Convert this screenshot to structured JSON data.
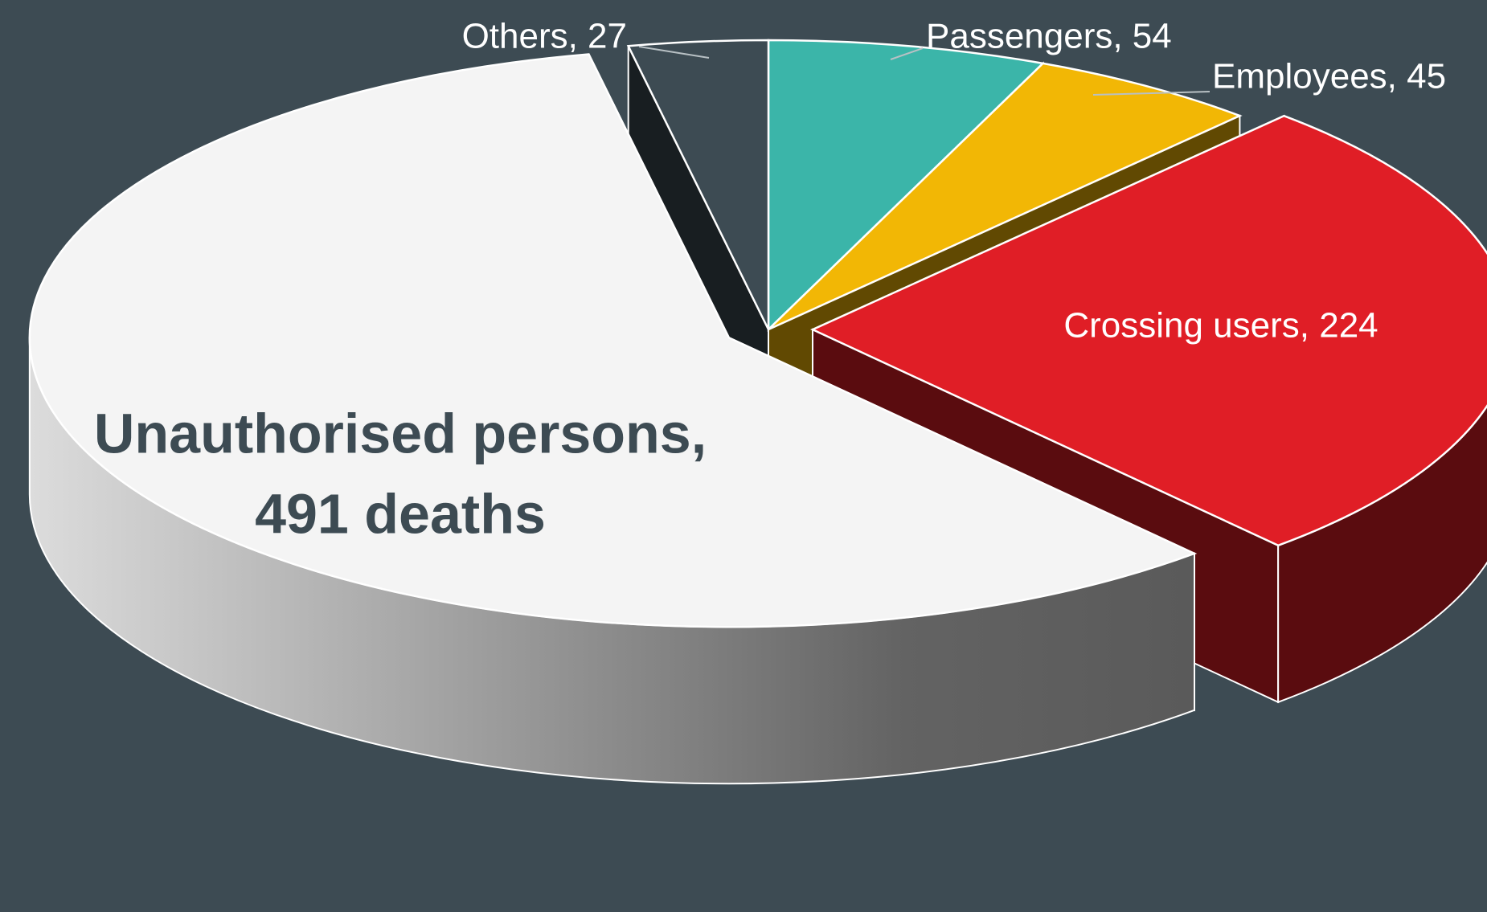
{
  "chart_data": {
    "type": "pie3d",
    "values": [
      54,
      45,
      224,
      491,
      27
    ],
    "value_labels": [
      "Passengers, 54",
      "Employees, 45",
      "Crossing users, 224",
      [
        "Unauthorised persons,",
        "491 deaths"
      ],
      "Others, 27"
    ],
    "colors": [
      "#3bb5a9",
      "#f2b705",
      "#e01e26",
      "#f4f4f4",
      "#3d4b53"
    ]
  }
}
